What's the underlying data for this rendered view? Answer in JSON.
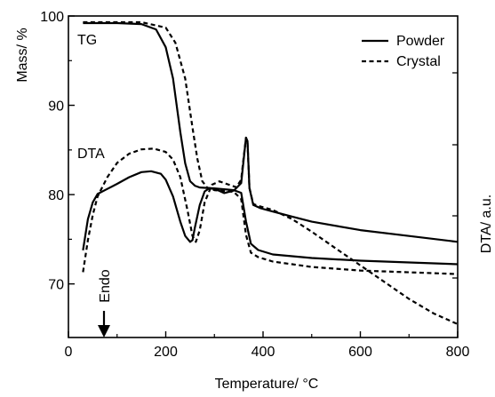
{
  "chart_data": {
    "type": "line",
    "xlabel": "Temperature/ °C",
    "xlim": [
      0,
      800
    ],
    "x_ticks": [
      0,
      200,
      400,
      600,
      800
    ],
    "left_axis": {
      "label": "Mass/ %",
      "ylim": [
        64,
        100
      ],
      "ticks": [
        70,
        80,
        90,
        100
      ]
    },
    "right_axis": {
      "label": "DTA/ a.u.",
      "ticks_unlabeled": true
    },
    "panel_labels": {
      "tg": "TG",
      "dta": "DTA"
    },
    "endo_label": "Endo",
    "grid": false,
    "legend_position": "top-right",
    "legend": [
      {
        "name": "Powder",
        "style": "solid"
      },
      {
        "name": "Crystal",
        "style": "dashed"
      }
    ],
    "tg_series": [
      {
        "name": "Powder",
        "style": "solid",
        "x": [
          30,
          100,
          150,
          180,
          200,
          215,
          230,
          240,
          250,
          260,
          270,
          300,
          340,
          355,
          365,
          375,
          390,
          420,
          500,
          600,
          700,
          800
        ],
        "y": [
          99.2,
          99.2,
          99.1,
          98.5,
          96.5,
          93.0,
          87.0,
          83.5,
          81.5,
          81.0,
          80.8,
          80.7,
          80.5,
          80.2,
          77.0,
          74.5,
          73.8,
          73.3,
          72.9,
          72.6,
          72.4,
          72.2
        ]
      },
      {
        "name": "Crystal",
        "style": "dashed",
        "x": [
          30,
          100,
          150,
          200,
          220,
          240,
          255,
          265,
          275,
          285,
          300,
          340,
          355,
          365,
          375,
          390,
          420,
          500,
          600,
          700,
          800
        ],
        "y": [
          99.3,
          99.3,
          99.3,
          98.7,
          97.0,
          93.0,
          87.5,
          84.0,
          81.5,
          80.8,
          80.5,
          80.3,
          79.5,
          75.5,
          73.5,
          73.0,
          72.5,
          71.9,
          71.5,
          71.3,
          71.1
        ]
      }
    ],
    "dta_series": [
      {
        "name": "Powder",
        "style": "solid",
        "x": [
          30,
          40,
          50,
          60,
          80,
          100,
          125,
          150,
          170,
          190,
          200,
          215,
          230,
          240,
          250,
          255,
          260,
          270,
          280,
          290,
          305,
          320,
          340,
          355,
          360,
          365,
          368,
          372,
          380,
          395,
          420,
          460,
          500,
          600,
          700,
          800
        ],
        "y": [
          -0.72,
          -0.35,
          -0.15,
          -0.05,
          0.01,
          0.07,
          0.15,
          0.21,
          0.22,
          0.19,
          0.12,
          -0.08,
          -0.38,
          -0.55,
          -0.62,
          -0.6,
          -0.45,
          -0.18,
          -0.02,
          0.02,
          0.0,
          -0.04,
          -0.01,
          0.08,
          0.35,
          0.62,
          0.58,
          0.02,
          -0.18,
          -0.22,
          -0.26,
          -0.32,
          -0.38,
          -0.48,
          -0.55,
          -0.62
        ]
      },
      {
        "name": "Crystal",
        "style": "dashed",
        "x": [
          30,
          40,
          50,
          60,
          80,
          100,
          125,
          150,
          175,
          200,
          215,
          230,
          245,
          255,
          262,
          270,
          280,
          295,
          310,
          330,
          345,
          355,
          360,
          365,
          368,
          372,
          380,
          395,
          420,
          460,
          500,
          550,
          600,
          650,
          700,
          750,
          800
        ],
        "y": [
          -0.98,
          -0.6,
          -0.3,
          -0.08,
          0.15,
          0.32,
          0.43,
          0.48,
          0.49,
          0.45,
          0.36,
          0.15,
          -0.25,
          -0.55,
          -0.62,
          -0.48,
          -0.15,
          0.06,
          0.1,
          0.06,
          0.03,
          0.12,
          0.38,
          0.62,
          0.56,
          0.02,
          -0.17,
          -0.2,
          -0.24,
          -0.35,
          -0.5,
          -0.7,
          -0.9,
          -1.1,
          -1.3,
          -1.47,
          -1.6
        ]
      }
    ]
  }
}
